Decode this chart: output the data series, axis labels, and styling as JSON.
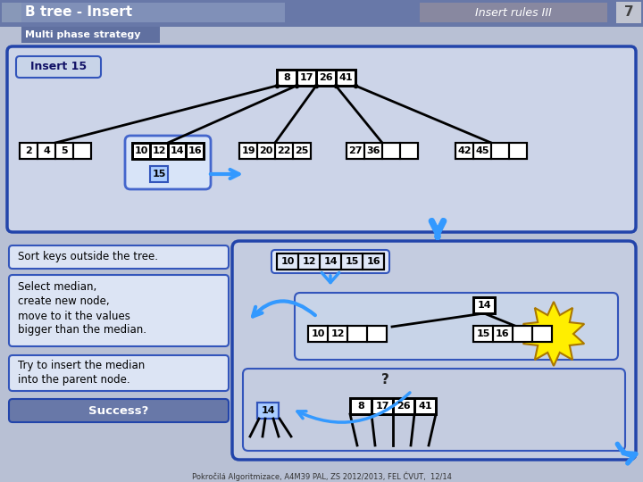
{
  "title": "B tree - Insert",
  "subtitle": "Multi phase strategy",
  "rules_label": "Insert rules III",
  "page_num": "7",
  "bg_color": "#b8c0d4",
  "header_bg": "#6878a0",
  "panel_bg": "#d0d8ec",
  "footer": "Pokročilá Algoritmizace, A4M39 PAL, ZS 2012/2013, FEL ČVUT,  12/14"
}
